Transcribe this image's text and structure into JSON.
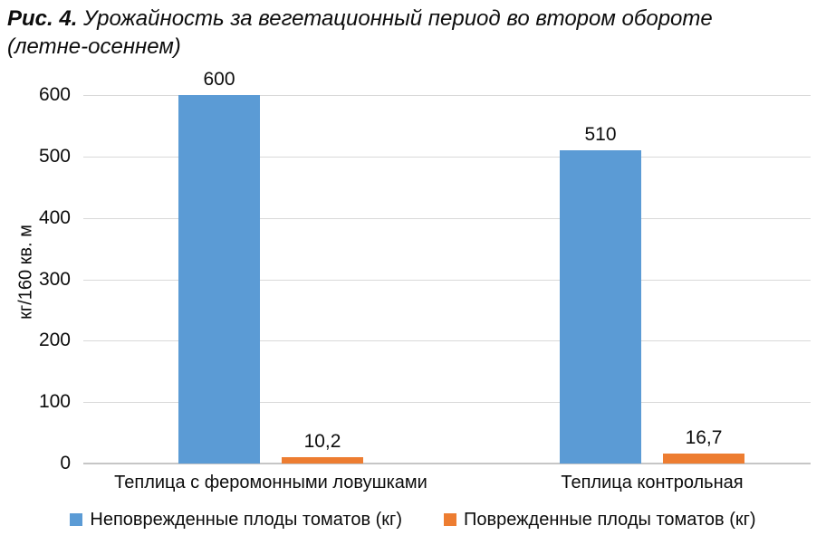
{
  "figure": {
    "caption_prefix": "Рис. 4.",
    "caption_line1": "Урожайность за вегетационный период во втором обороте",
    "caption_line2": "(летне-осеннем)"
  },
  "chart_data": {
    "type": "bar",
    "title": "Рис. 4. Урожайность за вегетационный период во втором обороте (летне-осеннем)",
    "categories": [
      "Теплица с феромонными ловушками",
      "Теплица контрольная"
    ],
    "series": [
      {
        "name": "Неповрежденные плоды томатов (кг)",
        "color": "#5B9BD5",
        "values": [
          600,
          510
        ],
        "labels": [
          "600",
          "510"
        ]
      },
      {
        "name": "Поврежденные плоды томатов (кг)",
        "color": "#ED7D31",
        "values": [
          10.2,
          16.7
        ],
        "labels": [
          "10,2",
          "16,7"
        ]
      }
    ],
    "xlabel": "",
    "ylabel": "кг/160 кв. м",
    "ylim": [
      0,
      600
    ],
    "ytick_step": 100,
    "yticks": [
      "0",
      "100",
      "200",
      "300",
      "400",
      "500",
      "600"
    ],
    "grid": true,
    "legend_position": "bottom"
  },
  "colors": {
    "series_blue": "#5B9BD5",
    "series_orange": "#ED7D31",
    "gridline": "#D9D9D9",
    "axis_line": "#C6C6C6",
    "text": "#0D0D0D"
  }
}
